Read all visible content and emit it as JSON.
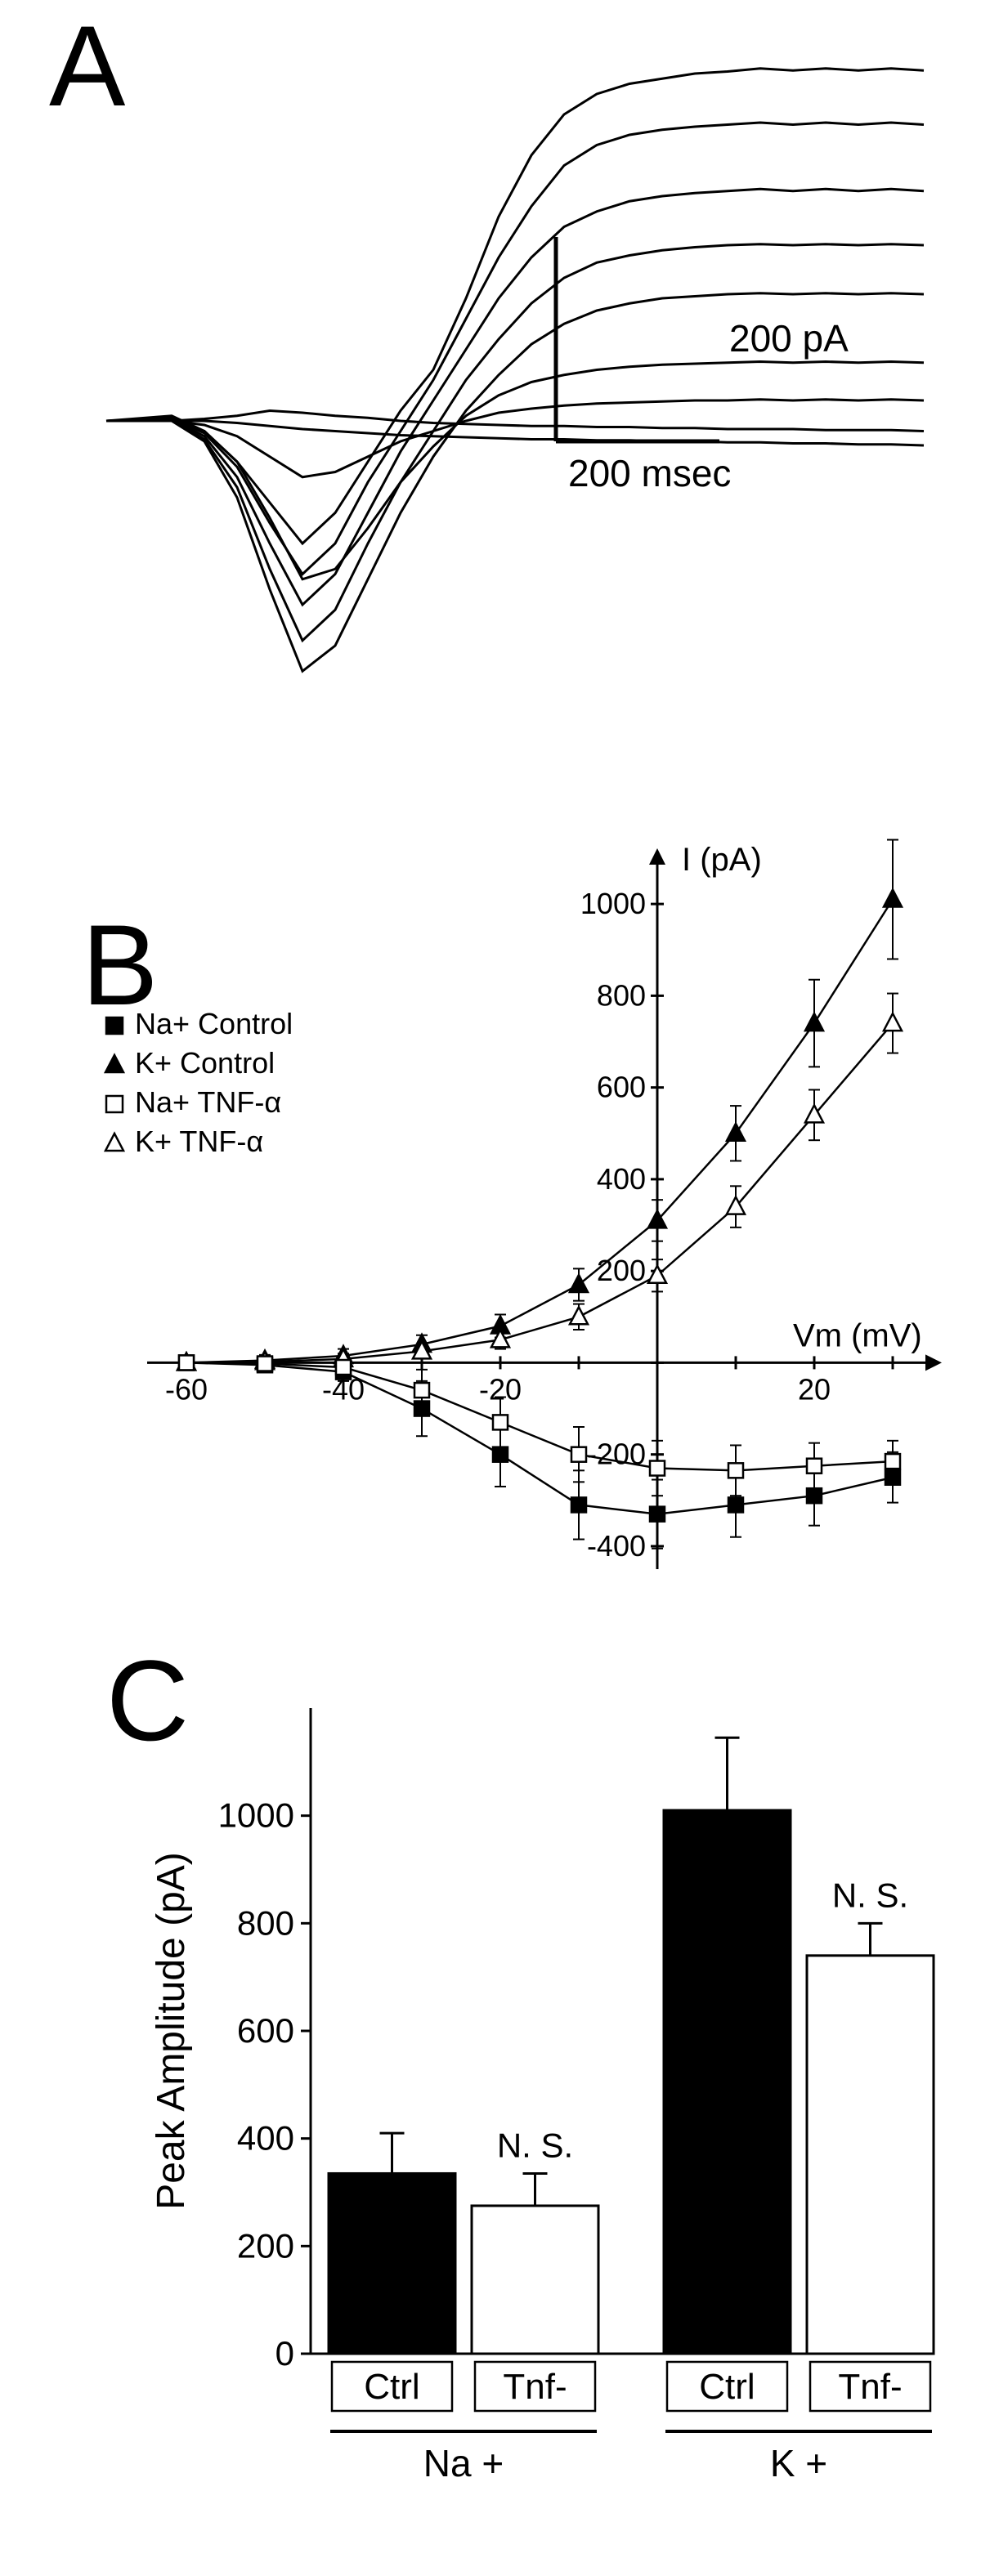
{
  "labels": {
    "panelA": "A",
    "panelB": "B",
    "panelC": "C",
    "scaleY": "200 pA",
    "scaleX": "200 msec",
    "legendNaControl": "Na+ Control",
    "legendKControl": "K+  Control",
    "legendNaTnf": "Na+ TNF-α",
    "legendKTnf": "K+  TNF-α",
    "yAxisB": "I (pA)",
    "xAxisB": "Vm (mV)",
    "yAxisC": "Peak Amplitude (pA)",
    "ctrl": "Ctrl",
    "tnf": "Tnf-",
    "na": "Na +",
    "k": "K +",
    "ns": "N. S."
  },
  "colors": {
    "black": "#000000",
    "white": "#ffffff"
  },
  "panelA": {
    "traces": [
      [
        [
          0,
          0
        ],
        [
          80,
          5
        ],
        [
          120,
          -10
        ],
        [
          160,
          -40
        ],
        [
          200,
          -80
        ],
        [
          240,
          -120
        ],
        [
          280,
          -90
        ],
        [
          320,
          -40
        ],
        [
          360,
          10
        ],
        [
          400,
          50
        ],
        [
          440,
          120
        ],
        [
          480,
          200
        ],
        [
          520,
          260
        ],
        [
          560,
          300
        ],
        [
          600,
          320
        ],
        [
          640,
          330
        ],
        [
          680,
          335
        ],
        [
          720,
          340
        ],
        [
          760,
          342
        ],
        [
          800,
          345
        ],
        [
          840,
          343
        ],
        [
          880,
          345
        ],
        [
          920,
          343
        ],
        [
          960,
          345
        ],
        [
          1000,
          343
        ]
      ],
      [
        [
          0,
          0
        ],
        [
          80,
          3
        ],
        [
          120,
          -12
        ],
        [
          160,
          -45
        ],
        [
          200,
          -100
        ],
        [
          240,
          -150
        ],
        [
          280,
          -120
        ],
        [
          320,
          -60
        ],
        [
          360,
          -10
        ],
        [
          400,
          40
        ],
        [
          440,
          100
        ],
        [
          480,
          160
        ],
        [
          520,
          210
        ],
        [
          560,
          250
        ],
        [
          600,
          270
        ],
        [
          640,
          280
        ],
        [
          680,
          285
        ],
        [
          720,
          288
        ],
        [
          760,
          290
        ],
        [
          800,
          292
        ],
        [
          840,
          290
        ],
        [
          880,
          292
        ],
        [
          920,
          290
        ],
        [
          960,
          292
        ],
        [
          1000,
          290
        ]
      ],
      [
        [
          0,
          0
        ],
        [
          80,
          2
        ],
        [
          120,
          -15
        ],
        [
          160,
          -55
        ],
        [
          200,
          -120
        ],
        [
          240,
          -180
        ],
        [
          280,
          -150
        ],
        [
          320,
          -90
        ],
        [
          360,
          -30
        ],
        [
          400,
          20
        ],
        [
          440,
          70
        ],
        [
          480,
          120
        ],
        [
          520,
          160
        ],
        [
          560,
          190
        ],
        [
          600,
          205
        ],
        [
          640,
          215
        ],
        [
          680,
          220
        ],
        [
          720,
          223
        ],
        [
          760,
          225
        ],
        [
          800,
          227
        ],
        [
          840,
          225
        ],
        [
          880,
          227
        ],
        [
          920,
          225
        ],
        [
          960,
          227
        ],
        [
          1000,
          225
        ]
      ],
      [
        [
          0,
          0
        ],
        [
          80,
          1
        ],
        [
          120,
          -18
        ],
        [
          160,
          -65
        ],
        [
          200,
          -145
        ],
        [
          240,
          -215
        ],
        [
          280,
          -185
        ],
        [
          320,
          -120
        ],
        [
          360,
          -60
        ],
        [
          400,
          -10
        ],
        [
          440,
          40
        ],
        [
          480,
          80
        ],
        [
          520,
          115
        ],
        [
          560,
          140
        ],
        [
          600,
          155
        ],
        [
          640,
          162
        ],
        [
          680,
          167
        ],
        [
          720,
          170
        ],
        [
          760,
          172
        ],
        [
          800,
          173
        ],
        [
          840,
          172
        ],
        [
          880,
          173
        ],
        [
          920,
          172
        ],
        [
          960,
          173
        ],
        [
          1000,
          172
        ]
      ],
      [
        [
          0,
          0
        ],
        [
          80,
          0
        ],
        [
          120,
          -20
        ],
        [
          160,
          -75
        ],
        [
          200,
          -165
        ],
        [
          240,
          -245
        ],
        [
          280,
          -220
        ],
        [
          320,
          -155
        ],
        [
          360,
          -90
        ],
        [
          400,
          -35
        ],
        [
          440,
          10
        ],
        [
          480,
          45
        ],
        [
          520,
          75
        ],
        [
          560,
          95
        ],
        [
          600,
          108
        ],
        [
          640,
          115
        ],
        [
          680,
          120
        ],
        [
          720,
          122
        ],
        [
          760,
          124
        ],
        [
          800,
          125
        ],
        [
          840,
          124
        ],
        [
          880,
          125
        ],
        [
          920,
          124
        ],
        [
          960,
          125
        ],
        [
          1000,
          124
        ]
      ],
      [
        [
          0,
          0
        ],
        [
          80,
          0
        ],
        [
          120,
          -10
        ],
        [
          160,
          -40
        ],
        [
          200,
          -95
        ],
        [
          240,
          -155
        ],
        [
          280,
          -145
        ],
        [
          320,
          -105
        ],
        [
          360,
          -60
        ],
        [
          400,
          -25
        ],
        [
          440,
          5
        ],
        [
          480,
          25
        ],
        [
          520,
          38
        ],
        [
          560,
          45
        ],
        [
          600,
          50
        ],
        [
          640,
          53
        ],
        [
          680,
          55
        ],
        [
          720,
          56
        ],
        [
          760,
          57
        ],
        [
          800,
          58
        ],
        [
          840,
          57
        ],
        [
          880,
          58
        ],
        [
          920,
          57
        ],
        [
          960,
          58
        ],
        [
          1000,
          57
        ]
      ],
      [
        [
          0,
          0
        ],
        [
          80,
          0
        ],
        [
          120,
          -4
        ],
        [
          160,
          -15
        ],
        [
          200,
          -35
        ],
        [
          240,
          -55
        ],
        [
          280,
          -50
        ],
        [
          320,
          -35
        ],
        [
          360,
          -20
        ],
        [
          400,
          -10
        ],
        [
          440,
          0
        ],
        [
          480,
          8
        ],
        [
          520,
          12
        ],
        [
          560,
          15
        ],
        [
          600,
          17
        ],
        [
          640,
          18
        ],
        [
          680,
          19
        ],
        [
          720,
          20
        ],
        [
          760,
          20
        ],
        [
          800,
          21
        ],
        [
          840,
          20
        ],
        [
          880,
          21
        ],
        [
          920,
          20
        ],
        [
          960,
          21
        ],
        [
          1000,
          20
        ]
      ],
      [
        [
          0,
          0
        ],
        [
          80,
          0
        ],
        [
          120,
          2
        ],
        [
          160,
          5
        ],
        [
          200,
          10
        ],
        [
          240,
          8
        ],
        [
          280,
          5
        ],
        [
          320,
          3
        ],
        [
          360,
          0
        ],
        [
          400,
          -2
        ],
        [
          440,
          -3
        ],
        [
          480,
          -4
        ],
        [
          520,
          -5
        ],
        [
          560,
          -5
        ],
        [
          600,
          -6
        ],
        [
          640,
          -6
        ],
        [
          680,
          -7
        ],
        [
          720,
          -7
        ],
        [
          760,
          -8
        ],
        [
          800,
          -8
        ],
        [
          840,
          -8
        ],
        [
          880,
          -9
        ],
        [
          920,
          -9
        ],
        [
          960,
          -9
        ],
        [
          1000,
          -10
        ]
      ],
      [
        [
          0,
          0
        ],
        [
          80,
          0
        ],
        [
          120,
          0
        ],
        [
          160,
          -2
        ],
        [
          200,
          -5
        ],
        [
          240,
          -8
        ],
        [
          280,
          -10
        ],
        [
          320,
          -12
        ],
        [
          360,
          -14
        ],
        [
          400,
          -15
        ],
        [
          440,
          -16
        ],
        [
          480,
          -17
        ],
        [
          520,
          -18
        ],
        [
          560,
          -18
        ],
        [
          600,
          -19
        ],
        [
          640,
          -19
        ],
        [
          680,
          -20
        ],
        [
          720,
          -20
        ],
        [
          760,
          -21
        ],
        [
          800,
          -21
        ],
        [
          840,
          -22
        ],
        [
          880,
          -22
        ],
        [
          920,
          -23
        ],
        [
          960,
          -23
        ],
        [
          1000,
          -24
        ]
      ]
    ],
    "scaleBarY": 200,
    "scaleBarX": 200,
    "scalePos": {
      "x": 550,
      "y": 420
    }
  },
  "panelB": {
    "xTicks": [
      -60,
      -40,
      -20,
      0,
      20
    ],
    "xTicksMinor": [
      -50,
      -30,
      -10,
      10,
      30
    ],
    "yTicks": [
      -400,
      -200,
      0,
      200,
      400,
      600,
      800,
      1000
    ],
    "xRange": [
      -65,
      35
    ],
    "yRange": [
      -450,
      1100
    ],
    "series": {
      "kControl": [
        {
          "x": -60,
          "y": 0,
          "e": 10
        },
        {
          "x": -50,
          "y": 5,
          "e": 12
        },
        {
          "x": -40,
          "y": 15,
          "e": 15
        },
        {
          "x": -30,
          "y": 40,
          "e": 20
        },
        {
          "x": -20,
          "y": 80,
          "e": 25
        },
        {
          "x": -10,
          "y": 170,
          "e": 35
        },
        {
          "x": 0,
          "y": 310,
          "e": 45
        },
        {
          "x": 10,
          "y": 500,
          "e": 60
        },
        {
          "x": 20,
          "y": 740,
          "e": 95
        },
        {
          "x": 30,
          "y": 1010,
          "e": 130
        }
      ],
      "kTnf": [
        {
          "x": -60,
          "y": 0,
          "e": 8
        },
        {
          "x": -50,
          "y": 2,
          "e": 10
        },
        {
          "x": -40,
          "y": 8,
          "e": 12
        },
        {
          "x": -30,
          "y": 25,
          "e": 15
        },
        {
          "x": -20,
          "y": 50,
          "e": 20
        },
        {
          "x": -10,
          "y": 100,
          "e": 28
        },
        {
          "x": 0,
          "y": 190,
          "e": 35
        },
        {
          "x": 10,
          "y": 340,
          "e": 45
        },
        {
          "x": 20,
          "y": 540,
          "e": 55
        },
        {
          "x": 30,
          "y": 740,
          "e": 65
        }
      ],
      "naControl": [
        {
          "x": -60,
          "y": 0,
          "e": 10
        },
        {
          "x": -50,
          "y": -5,
          "e": 12
        },
        {
          "x": -40,
          "y": -20,
          "e": 20
        },
        {
          "x": -30,
          "y": -100,
          "e": 60
        },
        {
          "x": -20,
          "y": -200,
          "e": 70
        },
        {
          "x": -10,
          "y": -310,
          "e": 75
        },
        {
          "x": 0,
          "y": -330,
          "e": 75
        },
        {
          "x": 10,
          "y": -310,
          "e": 70
        },
        {
          "x": 20,
          "y": -290,
          "e": 65
        },
        {
          "x": 30,
          "y": -250,
          "e": 55
        }
      ],
      "naTnf": [
        {
          "x": -60,
          "y": 0,
          "e": 8
        },
        {
          "x": -50,
          "y": -2,
          "e": 10
        },
        {
          "x": -40,
          "y": -10,
          "e": 15
        },
        {
          "x": -30,
          "y": -60,
          "e": 45
        },
        {
          "x": -20,
          "y": -130,
          "e": 55
        },
        {
          "x": -10,
          "y": -200,
          "e": 60
        },
        {
          "x": 0,
          "y": -230,
          "e": 60
        },
        {
          "x": 10,
          "y": -235,
          "e": 55
        },
        {
          "x": 20,
          "y": -225,
          "e": 50
        },
        {
          "x": 30,
          "y": -215,
          "e": 45
        }
      ]
    }
  },
  "panelC": {
    "yTicks": [
      0,
      200,
      400,
      600,
      800,
      1000
    ],
    "yRange": [
      0,
      1200
    ],
    "bars": [
      {
        "label": "Ctrl",
        "group": "Na +",
        "value": 335,
        "err": 75,
        "fill": "black",
        "ns": false
      },
      {
        "label": "Tnf-",
        "group": "Na +",
        "value": 275,
        "err": 60,
        "fill": "white",
        "ns": true
      },
      {
        "label": "Ctrl",
        "group": "K +",
        "value": 1010,
        "err": 135,
        "fill": "black",
        "ns": false
      },
      {
        "label": "Tnf-",
        "group": "K +",
        "value": 740,
        "err": 60,
        "fill": "white",
        "ns": true
      }
    ]
  }
}
